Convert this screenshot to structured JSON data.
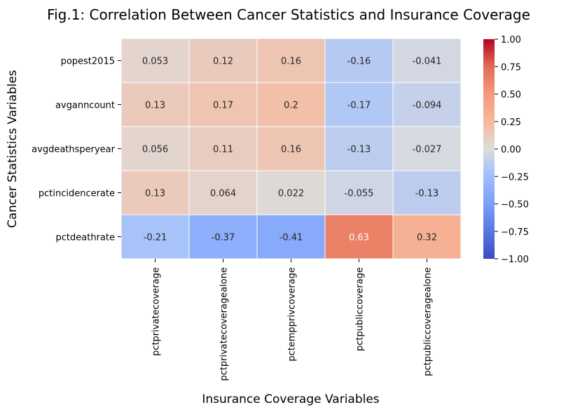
{
  "chart_data": {
    "type": "heatmap",
    "title": "Fig.1: Correlation Between Cancer Statistics and Insurance Coverage",
    "xlabel": "Insurance Coverage Variables",
    "ylabel": "Cancer Statistics Variables",
    "x_categories": [
      "pctprivatecoverage",
      "pctprivatecoveragealone",
      "pctempprivcoverage",
      "pctpubliccoverage",
      "pctpubliccoveragealone"
    ],
    "y_categories": [
      "popest2015",
      "avganncount",
      "avgdeathsperyear",
      "pctincidencerate",
      "pctdeathrate"
    ],
    "values": [
      [
        0.053,
        0.12,
        0.16,
        -0.16,
        -0.041
      ],
      [
        0.13,
        0.17,
        0.2,
        -0.17,
        -0.094
      ],
      [
        0.056,
        0.11,
        0.16,
        -0.13,
        -0.027
      ],
      [
        0.13,
        0.064,
        0.022,
        -0.055,
        -0.13
      ],
      [
        -0.21,
        -0.37,
        -0.41,
        0.63,
        0.32
      ]
    ],
    "colormap": "coolwarm",
    "vmin": -1.0,
    "vmax": 1.0,
    "colorbar_ticks": [
      "1.00",
      "0.75",
      "0.50",
      "0.25",
      "0.00",
      "−0.25",
      "−0.50",
      "−0.75",
      "−1.00"
    ],
    "colorbar_tick_values": [
      1.0,
      0.75,
      0.5,
      0.25,
      0.0,
      -0.25,
      -0.5,
      -0.75,
      -1.0
    ]
  }
}
